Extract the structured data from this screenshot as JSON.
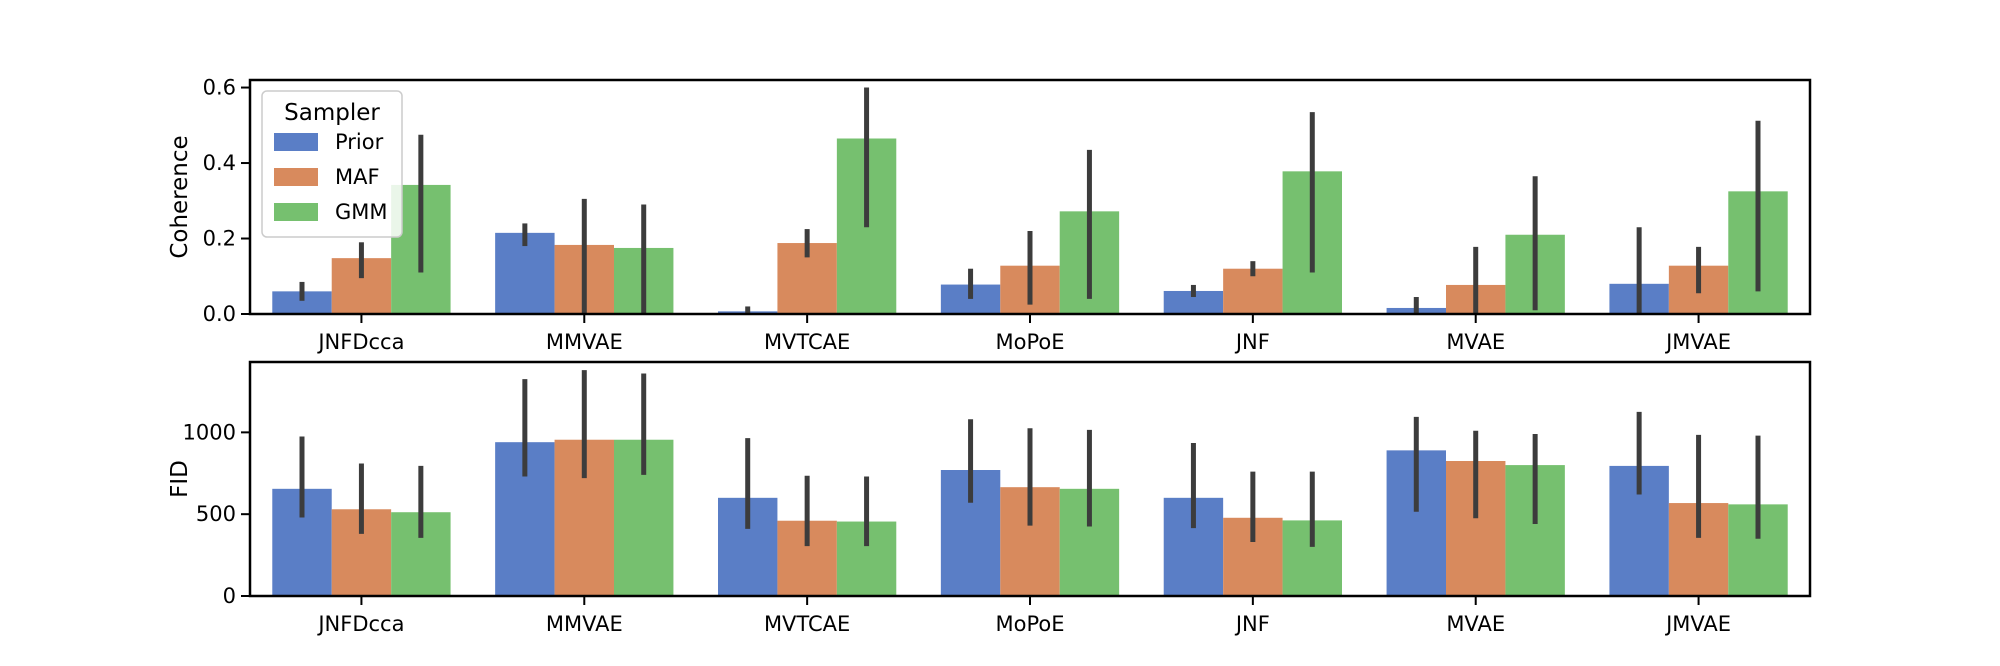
{
  "chart_data": [
    {
      "type": "bar",
      "ylabel": "Coherence",
      "ylim": [
        0,
        0.62
      ],
      "yticks": [
        0.0,
        0.2,
        0.4,
        0.6
      ],
      "ytick_labels": [
        "0.0",
        "0.2",
        "0.4",
        "0.6"
      ],
      "categories": [
        "JNFDcca",
        "MMVAE",
        "MVTCAE",
        "MoPoE",
        "JNF",
        "MVAE",
        "JMVAE"
      ],
      "legend": {
        "title": "Sampler",
        "position": "upper-left"
      },
      "grid": false,
      "series": [
        {
          "name": "Prior",
          "color": "#5a7ec6",
          "values": [
            0.06,
            0.215,
            0.007,
            0.078,
            0.061,
            0.016,
            0.08
          ],
          "err_low": [
            0.035,
            0.18,
            0.0,
            0.04,
            0.045,
            0.0,
            0.0
          ],
          "err_high": [
            0.085,
            0.24,
            0.02,
            0.12,
            0.077,
            0.045,
            0.23
          ]
        },
        {
          "name": "MAF",
          "color": "#d88a5d",
          "values": [
            0.148,
            0.183,
            0.188,
            0.128,
            0.12,
            0.077,
            0.128
          ],
          "err_low": [
            0.095,
            0.0,
            0.15,
            0.025,
            0.1,
            0.0,
            0.055
          ],
          "err_high": [
            0.19,
            0.305,
            0.225,
            0.22,
            0.14,
            0.178,
            0.178
          ]
        },
        {
          "name": "GMM",
          "color": "#76c06f",
          "values": [
            0.342,
            0.175,
            0.465,
            0.272,
            0.378,
            0.21,
            0.325
          ],
          "err_low": [
            0.11,
            0.0,
            0.23,
            0.04,
            0.11,
            0.01,
            0.06
          ],
          "err_high": [
            0.475,
            0.29,
            0.6,
            0.435,
            0.535,
            0.365,
            0.512
          ]
        }
      ]
    },
    {
      "type": "bar",
      "ylabel": "FID",
      "ylim": [
        0,
        1430
      ],
      "yticks": [
        0,
        500,
        1000
      ],
      "ytick_labels": [
        "0",
        "500",
        "1000"
      ],
      "categories": [
        "JNFDcca",
        "MMVAE",
        "MVTCAE",
        "MoPoE",
        "JNF",
        "MVAE",
        "JMVAE"
      ],
      "grid": false,
      "series": [
        {
          "name": "Prior",
          "color": "#5a7ec6",
          "values": [
            655,
            940,
            600,
            770,
            600,
            890,
            795
          ],
          "err_low": [
            480,
            730,
            410,
            570,
            415,
            515,
            620
          ],
          "err_high": [
            975,
            1325,
            965,
            1080,
            935,
            1095,
            1125
          ]
        },
        {
          "name": "MAF",
          "color": "#d88a5d",
          "values": [
            530,
            955,
            460,
            665,
            478,
            825,
            568
          ],
          "err_low": [
            380,
            720,
            305,
            430,
            330,
            475,
            355
          ],
          "err_high": [
            810,
            1380,
            735,
            1025,
            760,
            1010,
            985
          ]
        },
        {
          "name": "GMM",
          "color": "#76c06f",
          "values": [
            512,
            955,
            455,
            655,
            462,
            800,
            560
          ],
          "err_low": [
            355,
            740,
            305,
            425,
            300,
            440,
            350
          ],
          "err_high": [
            795,
            1360,
            730,
            1015,
            760,
            990,
            980
          ]
        }
      ]
    }
  ]
}
